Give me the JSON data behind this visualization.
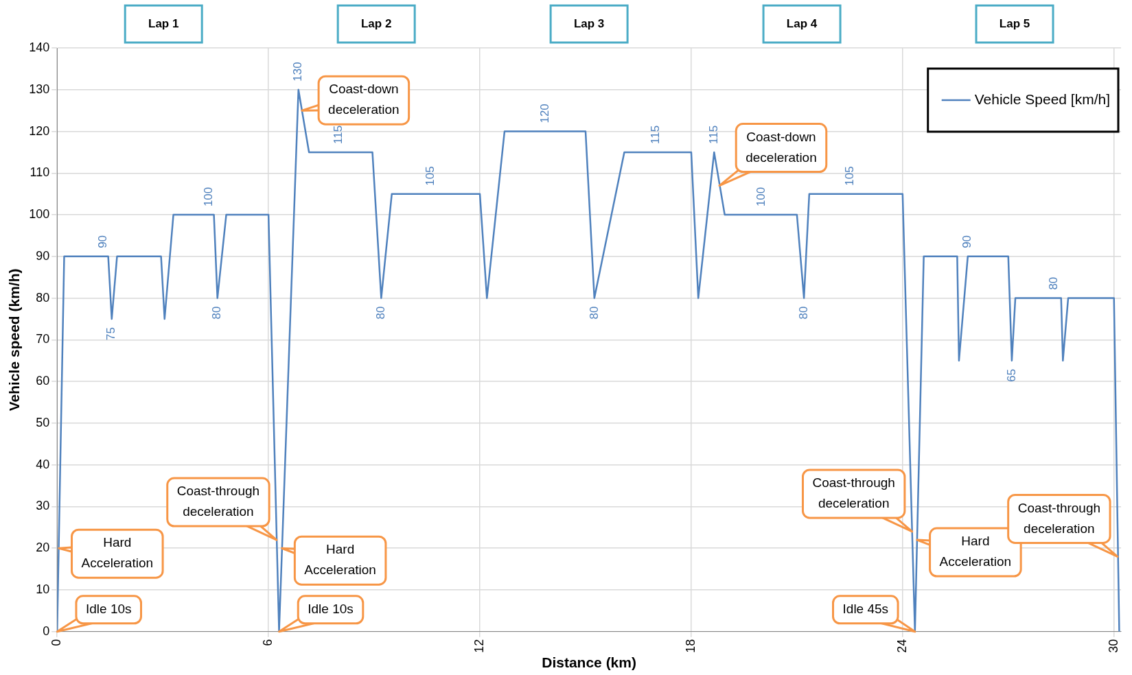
{
  "chart_data": {
    "type": "line",
    "xlabel": "Distance (km)",
    "ylabel": "Vehicle speed (km/h)",
    "x": [
      0,
      0.2,
      1.45,
      1.55,
      1.7,
      2.95,
      3.05,
      3.3,
      4.45,
      4.55,
      4.8,
      6.0,
      6.3,
      6.85,
      7.15,
      8.95,
      9.2,
      9.5,
      12.0,
      12.2,
      12.7,
      15.0,
      15.25,
      16.1,
      18.0,
      18.2,
      18.65,
      18.95,
      21.0,
      21.2,
      21.35,
      24.0,
      24.35,
      24.6,
      25.55,
      25.6,
      25.85,
      27.0,
      27.1,
      27.2,
      28.5,
      28.55,
      28.7,
      30.0,
      30.15
    ],
    "series": [
      {
        "name": "Vehicle Speed [km/h]",
        "color": "#4f81bd",
        "values": [
          0,
          90,
          90,
          75,
          90,
          90,
          75,
          100,
          100,
          80,
          100,
          100,
          0,
          130,
          115,
          115,
          80,
          105,
          105,
          80,
          120,
          120,
          80,
          115,
          115,
          80,
          115,
          100,
          100,
          80,
          105,
          105,
          0,
          90,
          90,
          65,
          90,
          90,
          65,
          80,
          80,
          65,
          80,
          80,
          0
        ]
      }
    ],
    "xlim": [
      0,
      30.2
    ],
    "xticks": [
      0,
      6,
      12,
      18,
      24,
      30
    ],
    "ylim": [
      0,
      140
    ],
    "yticks": [
      0,
      10,
      20,
      30,
      40,
      50,
      60,
      70,
      80,
      90,
      100,
      110,
      120,
      130,
      140
    ],
    "grid": true,
    "legend": "top right",
    "marker": "none",
    "line_style": "solid",
    "annotations": [
      {
        "text": "90",
        "x": 1.3,
        "y": 90
      },
      {
        "text": "75",
        "x": 1.55,
        "y": 75
      },
      {
        "text": "100",
        "x": 4.3,
        "y": 100
      },
      {
        "text": "80",
        "x": 4.55,
        "y": 80
      },
      {
        "text": "130",
        "x": 6.85,
        "y": 130
      },
      {
        "text": "115",
        "x": 8.0,
        "y": 115
      },
      {
        "text": "80",
        "x": 9.2,
        "y": 80
      },
      {
        "text": "105",
        "x": 10.6,
        "y": 105
      },
      {
        "text": "120",
        "x": 13.85,
        "y": 120
      },
      {
        "text": "80",
        "x": 15.25,
        "y": 80
      },
      {
        "text": "115",
        "x": 17.0,
        "y": 115
      },
      {
        "text": "115",
        "x": 18.65,
        "y": 115
      },
      {
        "text": "100",
        "x": 20.0,
        "y": 100
      },
      {
        "text": "80",
        "x": 21.2,
        "y": 80
      },
      {
        "text": "105",
        "x": 22.5,
        "y": 105
      },
      {
        "text": "90",
        "x": 25.85,
        "y": 90
      },
      {
        "text": "65",
        "x": 27.1,
        "y": 65
      },
      {
        "text": "80",
        "x": 28.3,
        "y": 80
      },
      {
        "text": "Hard Acceleration",
        "x": 0.05,
        "y": 20
      },
      {
        "text": "Idle 10s",
        "x": 0,
        "y": 0
      },
      {
        "text": "Coast-through deceleration",
        "x": 6.23,
        "y": 22
      },
      {
        "text": "Hard Acceleration",
        "x": 6.38,
        "y": 20
      },
      {
        "text": "Idle 10s",
        "x": 6.3,
        "y": 0
      },
      {
        "text": "Coast-down deceleration",
        "x": 6.95,
        "y": 125
      },
      {
        "text": "Coast-down deceleration",
        "x": 18.8,
        "y": 107
      },
      {
        "text": "Coast-through deceleration",
        "x": 24.27,
        "y": 24
      },
      {
        "text": "Hard Acceleration",
        "x": 24.41,
        "y": 22
      },
      {
        "text": "Idle 45s",
        "x": 24.35,
        "y": 0
      },
      {
        "text": "Coast-through deceleration",
        "x": 30.1,
        "y": 18
      },
      "Lap 1",
      "Lap 2",
      "Lap 3",
      "Lap 4",
      "Lap 5"
    ]
  }
}
